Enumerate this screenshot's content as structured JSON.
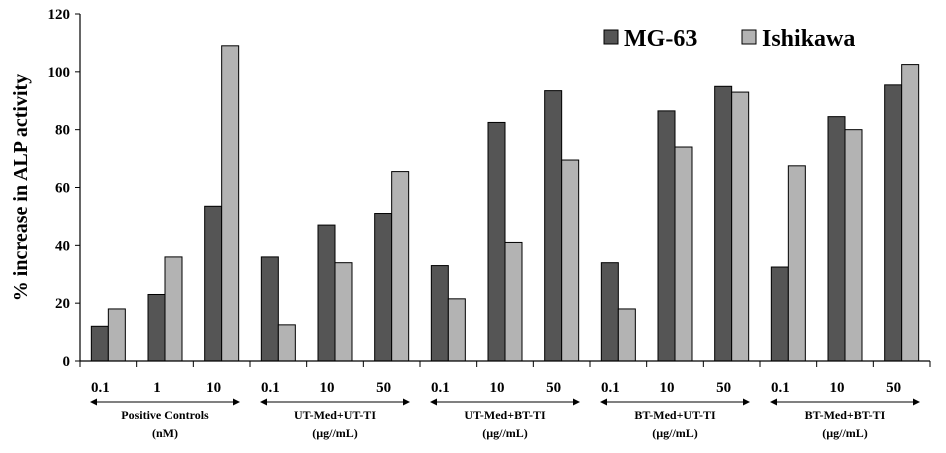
{
  "chart_data": {
    "type": "bar",
    "title": "",
    "xlabel": "",
    "ylabel": "% increase in ALP activity",
    "ylim": [
      0,
      120
    ],
    "yticks": [
      "0",
      "20",
      "40",
      "60",
      "80",
      "100",
      "120"
    ],
    "grid": false,
    "legend_position": "top-right",
    "categories": [
      "0.1",
      "1",
      "10",
      "0.1",
      "10",
      "50",
      "0.1",
      "10",
      "50",
      "0.1",
      "10",
      "50",
      "0.1",
      "10",
      "50"
    ],
    "groups": [
      {
        "line1": "Positive Controls",
        "line2": "(nM)",
        "count": 3
      },
      {
        "line1": "UT-Med+UT-TI",
        "line2": "(µg//mL)",
        "count": 3
      },
      {
        "line1": "UT-Med+BT-TI",
        "line2": "(µg//mL)",
        "count": 3
      },
      {
        "line1": "BT-Med+UT-TI",
        "line2": "(µg//mL)",
        "count": 3
      },
      {
        "line1": "BT-Med+BT-TI",
        "line2": "(µg//mL)",
        "count": 3
      }
    ],
    "series": [
      {
        "name": "MG-63",
        "color": "#555555",
        "values": [
          12,
          23,
          53.5,
          36,
          47,
          51,
          33,
          82.5,
          93.5,
          34,
          86.5,
          95,
          32.5,
          84.5,
          95.5
        ]
      },
      {
        "name": "Ishikawa",
        "color": "#b3b3b3",
        "values": [
          18,
          36,
          109,
          12.5,
          34,
          65.5,
          21.5,
          41,
          69.5,
          18,
          74,
          93,
          67.5,
          80,
          102.5
        ]
      }
    ]
  }
}
